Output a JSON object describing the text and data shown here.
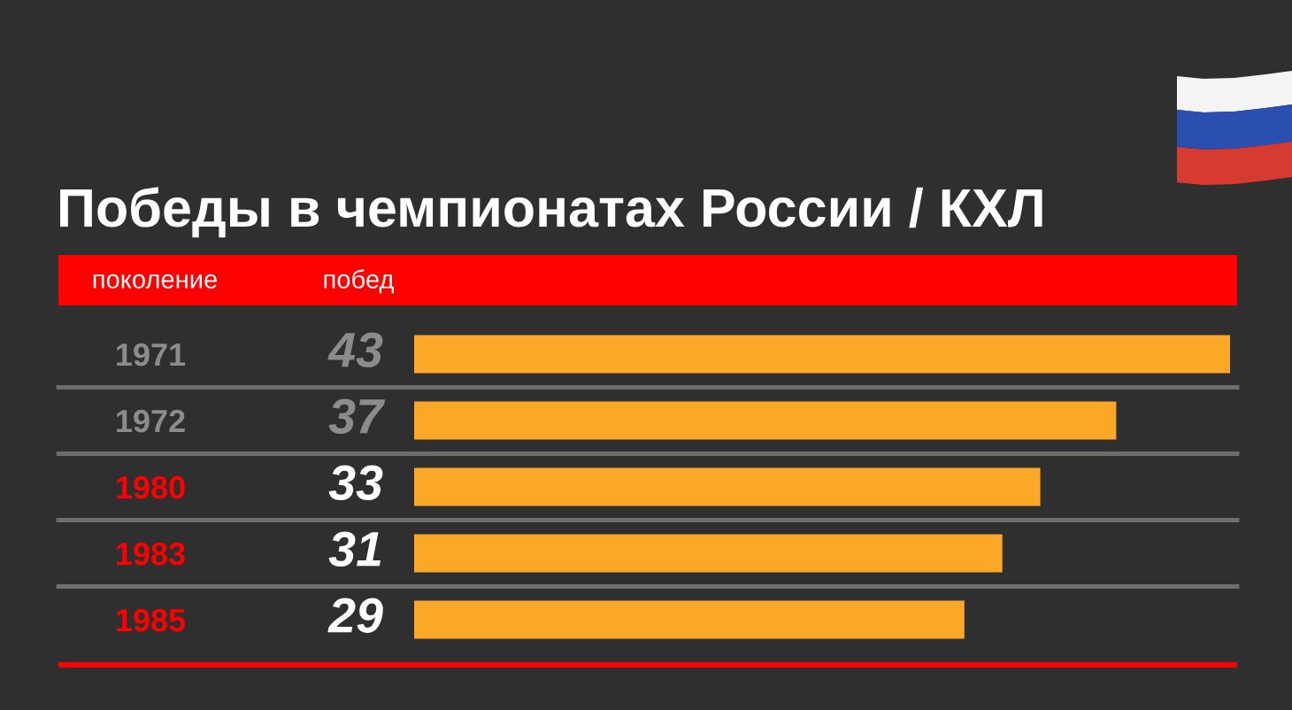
{
  "chart_data": {
    "type": "bar",
    "orientation": "horizontal",
    "title": "Победы в чемпионатах России / КХЛ",
    "ylabel": "поколение",
    "xlabel": "побед",
    "categories": [
      "1971",
      "1972",
      "1980",
      "1983",
      "1985"
    ],
    "values": [
      43,
      37,
      33,
      31,
      29
    ],
    "color": "#fba828",
    "data_labels": true,
    "xlim": [
      0,
      43
    ],
    "tick_labels": "y",
    "grid": "y"
  }
}
